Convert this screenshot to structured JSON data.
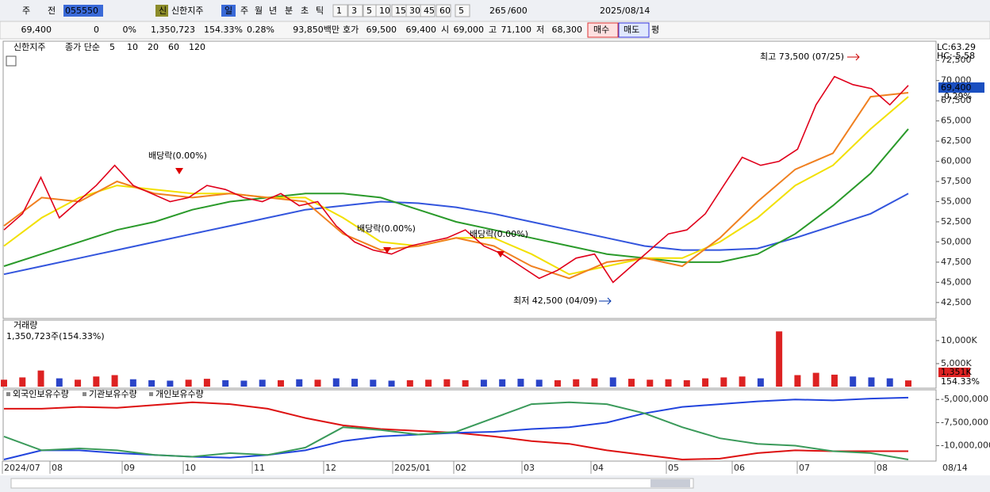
{
  "toolbar": {
    "items": [
      "주",
      "전",
      "055550",
      "신",
      "신한지주",
      "일",
      "주",
      "월",
      "년",
      "분",
      "초",
      "틱",
      "1",
      "3",
      "5",
      "10",
      "15",
      "30",
      "45",
      "60",
      "5",
      "265",
      "/600",
      "2025/08/14"
    ]
  },
  "info": [
    "69,400",
    "0",
    "0%",
    "1,350,723",
    "154.33%",
    "0.28%",
    "93,850백만",
    "호가",
    "69,500",
    "69,400",
    "시",
    "69,000",
    "고",
    "71,100",
    "저",
    "68,300",
    "매수",
    "매도",
    "평"
  ],
  "price_panel": {
    "name": "신한지주",
    "ma_label": "종가 단순",
    "ylim": [
      40520,
      74880
    ],
    "yticks": [
      {
        "value": 42500,
        "label": "42,500"
      },
      {
        "value": 45000,
        "label": "45,000"
      },
      {
        "value": 47500,
        "label": "47,500"
      },
      {
        "value": 50000,
        "label": "50,000"
      },
      {
        "value": 52500,
        "label": "52,500"
      },
      {
        "value": 55000,
        "label": "55,000"
      },
      {
        "value": 57500,
        "label": "57,500"
      },
      {
        "value": 60000,
        "label": "60,000"
      },
      {
        "value": 62500,
        "label": "62,500"
      },
      {
        "value": 65000,
        "label": "65,000"
      },
      {
        "value": 67500,
        "label": "67,500"
      },
      {
        "value": 70000,
        "label": "70,000"
      },
      {
        "value": 72500,
        "label": "72,500"
      }
    ],
    "series": [
      {
        "name": "5",
        "color": "#e0001b",
        "values": [
          51500,
          53500,
          58000,
          53000,
          55000,
          57000,
          59500,
          57000,
          56000,
          55000,
          55500,
          57000,
          56500,
          55500,
          55000,
          56000,
          54500,
          55000,
          52000,
          50000,
          49000,
          48500,
          49500,
          50000,
          50500,
          51500,
          49500,
          48500,
          47000,
          45500,
          46500,
          48000,
          48500,
          45000,
          47000,
          49000,
          51000,
          51500,
          53500,
          57000,
          60500,
          59500,
          60000,
          61500,
          67000,
          70500,
          69500,
          69000,
          67000,
          69400
        ]
      },
      {
        "name": "10",
        "color": "#f08020",
        "values": [
          52000,
          55500,
          55000,
          57500,
          56000,
          55500,
          56000,
          55500,
          55000,
          51000,
          49000,
          49500,
          50500,
          49500,
          47000,
          45500,
          47500,
          48000,
          47000,
          50500,
          55000,
          59000,
          61000,
          68000,
          68500
        ]
      },
      {
        "name": "20",
        "color": "#f2e000",
        "values": [
          49500,
          53000,
          55500,
          57000,
          56500,
          56000,
          56000,
          55500,
          55500,
          53000,
          50000,
          49500,
          50500,
          50500,
          48500,
          46000,
          47000,
          48000,
          48000,
          50000,
          53000,
          57000,
          59500,
          64000,
          68000
        ]
      },
      {
        "name": "60",
        "color": "#2a9a2a",
        "values": [
          47000,
          48500,
          50000,
          51500,
          52500,
          54000,
          55000,
          55500,
          56000,
          56000,
          55500,
          54000,
          52500,
          51500,
          50500,
          49500,
          48500,
          48000,
          47500,
          47500,
          48500,
          51000,
          54500,
          58500,
          64000
        ]
      },
      {
        "name": "120",
        "color": "#3355dd",
        "values": [
          46000,
          47000,
          48000,
          49000,
          50000,
          51000,
          52000,
          53000,
          54000,
          54500,
          55000,
          54800,
          54300,
          53500,
          52500,
          51500,
          50500,
          49500,
          49000,
          49000,
          49200,
          50500,
          52000,
          53500,
          56000
        ]
      }
    ],
    "annotations": [
      "최고 73,500 (07/25)",
      "최저 42,500 (04/09)",
      "배당락(0.00%)",
      "배당락(0.00%)",
      "배당락(0.00%)"
    ],
    "side_labels": [
      "LC:63.29",
      "HC:-5.58",
      "69,400",
      "-0.29%"
    ]
  },
  "volume_panel": {
    "title": "거래량",
    "subtitle": "1,350,723주(154.33%)",
    "ylim": [
      0,
      14460
    ],
    "yticks": [
      {
        "value": 5000,
        "label": "5,000K"
      },
      {
        "value": 10000,
        "label": "10,000K"
      }
    ],
    "values": [
      1500,
      2000,
      3500,
      1800,
      1500,
      2200,
      2500,
      1600,
      1400,
      1300,
      1500,
      1700,
      1400,
      1300,
      1500,
      1400,
      1600,
      1500,
      1800,
      1700,
      1500,
      1300,
      1400,
      1500,
      1600,
      1400,
      1500,
      1600,
      1700,
      1500,
      1400,
      1600,
      1800,
      2000,
      1700,
      1500,
      1600,
      1400,
      1800,
      2000,
      2200,
      1800,
      12000,
      2500,
      3000,
      2600,
      2200,
      2000,
      1800,
      1351
    ],
    "last_label": "1,351K",
    "ratio_label": "154.33%"
  },
  "investor_panel": {
    "ylim": [
      -11670000,
      -3950000
    ],
    "yticks": [
      {
        "value": -5000000,
        "label": "-5,000,000"
      },
      {
        "value": -7500000,
        "label": "-7,500,000"
      },
      {
        "value": -10000000,
        "label": "-10,000,000"
      }
    ],
    "series": [
      {
        "name": "외국인보유수량",
        "color": "#dd1111",
        "values": [
          -6000000,
          -6000000,
          -5800000,
          -5900000,
          -5600000,
          -5300000,
          -5500000,
          -6000000,
          -7000000,
          -7800000,
          -8200000,
          -8400000,
          -8600000,
          -9000000,
          -9500000,
          -9800000,
          -10500000,
          -11000000,
          -11500000,
          -11400000,
          -10800000,
          -10500000,
          -10600000,
          -10600000,
          -10600000
        ]
      },
      {
        "name": "기관보유수량",
        "color": "#2244dd",
        "values": [
          -11500000,
          -10500000,
          -10500000,
          -10800000,
          -11000000,
          -11200000,
          -11300000,
          -11000000,
          -10500000,
          -9500000,
          -9000000,
          -8800000,
          -8600000,
          -8500000,
          -8200000,
          -8000000,
          -7500000,
          -6500000,
          -5800000,
          -5500000,
          -5200000,
          -5000000,
          -5100000,
          -4900000,
          -4800000
        ]
      },
      {
        "name": "개인보유수량",
        "color": "#3a9a5a",
        "values": [
          -9000000,
          -10500000,
          -10300000,
          -10500000,
          -11000000,
          -11200000,
          -10800000,
          -11000000,
          -10200000,
          -8000000,
          -8300000,
          -8800000,
          -8500000,
          -7000000,
          -5500000,
          -5300000,
          -5500000,
          -6500000,
          -8000000,
          -9200000,
          -9800000,
          -10000000,
          -10600000,
          -10800000,
          -11500000
        ]
      }
    ]
  },
  "x_axis": {
    "labels": [
      "2024/07",
      "08",
      "09",
      "10",
      "11",
      "12",
      "2025/01",
      "02",
      "03",
      "04",
      "05",
      "06",
      "07",
      "08"
    ],
    "last": "08/14"
  }
}
